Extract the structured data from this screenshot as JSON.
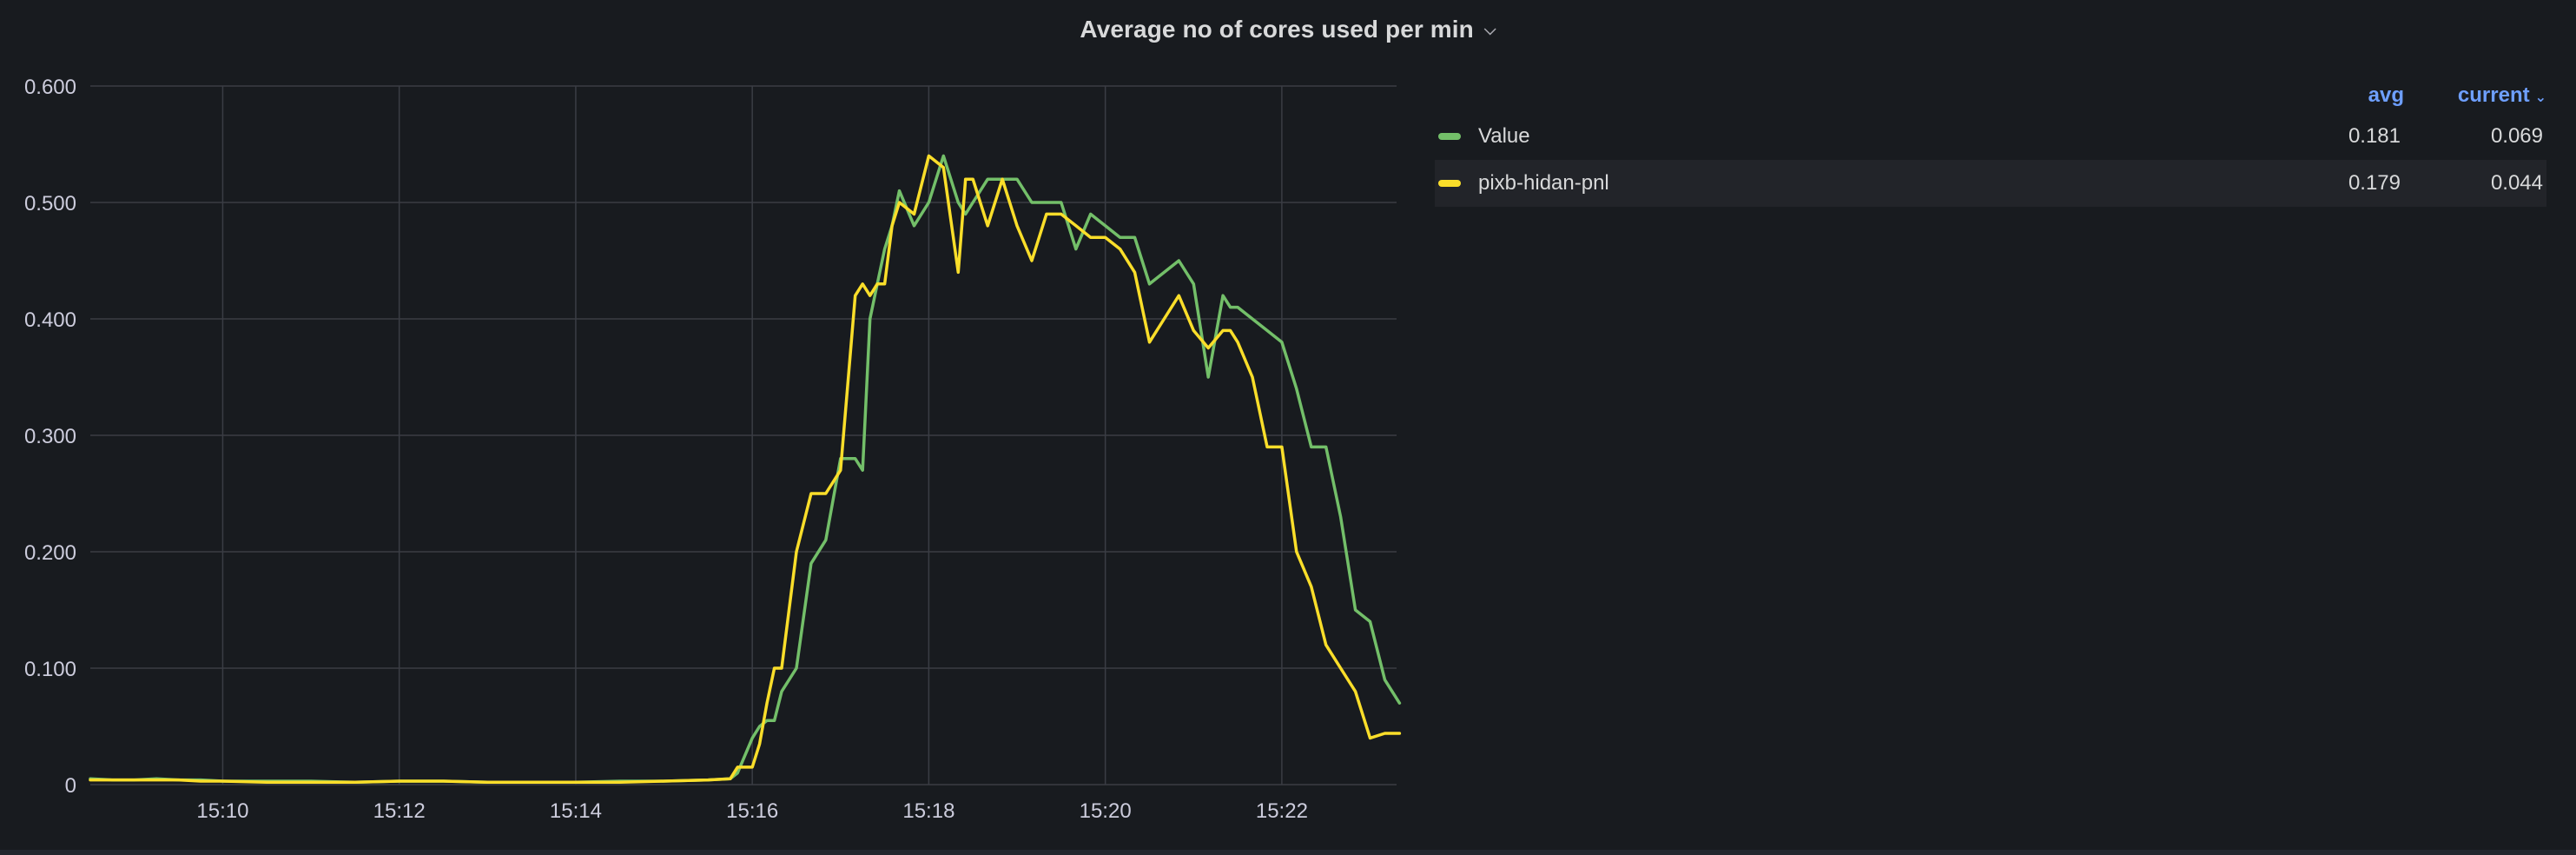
{
  "panel": {
    "title": "Average no of cores used per min"
  },
  "colors": {
    "value": "#73bf69",
    "pixb": "#fade2a",
    "grid": "#3a3d44",
    "text": "#ccccdc"
  },
  "legend": {
    "col_avg": "avg",
    "col_current": "current",
    "rows": [
      {
        "name": "Value",
        "avg": "0.181",
        "current": "0.069"
      },
      {
        "name": "pixb-hidan-pnl",
        "avg": "0.179",
        "current": "0.044"
      }
    ]
  },
  "chart_data": {
    "type": "line",
    "x_unit": "minutes",
    "x_range": [
      "15:08.5",
      "15:23.3"
    ],
    "x_ticks": [
      "15:10",
      "15:12",
      "15:14",
      "15:16",
      "15:18",
      "15:20",
      "15:22"
    ],
    "y_ticks": [
      "0",
      "0.100",
      "0.200",
      "0.300",
      "0.400",
      "0.500",
      "0.600"
    ],
    "ylim": [
      0,
      0.6
    ],
    "grid": true,
    "legend_position": "right",
    "series": [
      {
        "name": "Value",
        "color": "#73bf69",
        "x": [
          "15:08:30",
          "15:08:45",
          "15:09:00",
          "15:09:15",
          "15:09:30",
          "15:09:45",
          "15:10:00",
          "15:10:30",
          "15:11:00",
          "15:11:30",
          "15:12:00",
          "15:12:30",
          "15:13:00",
          "15:13:30",
          "15:14:00",
          "15:14:30",
          "15:15:00",
          "15:15:30",
          "15:15:45",
          "15:15:50",
          "15:16:00",
          "15:16:05",
          "15:16:10",
          "15:16:15",
          "15:16:20",
          "15:16:30",
          "15:16:40",
          "15:16:50",
          "15:17:00",
          "15:17:10",
          "15:17:15",
          "15:17:20",
          "15:17:25",
          "15:17:30",
          "15:17:35",
          "15:17:40",
          "15:17:50",
          "15:18:00",
          "15:18:10",
          "15:18:20",
          "15:18:25",
          "15:18:30",
          "15:18:40",
          "15:18:50",
          "15:19:00",
          "15:19:10",
          "15:19:20",
          "15:19:30",
          "15:19:40",
          "15:19:50",
          "15:20:00",
          "15:20:10",
          "15:20:20",
          "15:20:30",
          "15:20:40",
          "15:20:50",
          "15:21:00",
          "15:21:10",
          "15:21:20",
          "15:21:25",
          "15:21:30",
          "15:21:40",
          "15:21:50",
          "15:22:00",
          "15:22:10",
          "15:22:20",
          "15:22:30",
          "15:22:40",
          "15:22:50",
          "15:23:00",
          "15:23:10",
          "15:23:20"
        ],
        "y": [
          0.005,
          0.004,
          0.004,
          0.005,
          0.004,
          0.004,
          0.003,
          0.003,
          0.003,
          0.002,
          0.003,
          0.003,
          0.002,
          0.002,
          0.002,
          0.003,
          0.003,
          0.004,
          0.005,
          0.01,
          0.04,
          0.05,
          0.055,
          0.055,
          0.08,
          0.1,
          0.19,
          0.21,
          0.28,
          0.28,
          0.27,
          0.4,
          0.43,
          0.46,
          0.48,
          0.51,
          0.48,
          0.5,
          0.54,
          0.5,
          0.49,
          0.5,
          0.52,
          0.52,
          0.52,
          0.5,
          0.5,
          0.5,
          0.46,
          0.49,
          0.48,
          0.47,
          0.47,
          0.43,
          0.44,
          0.45,
          0.43,
          0.35,
          0.42,
          0.41,
          0.41,
          0.4,
          0.39,
          0.38,
          0.34,
          0.29,
          0.29,
          0.23,
          0.15,
          0.14,
          0.09,
          0.07
        ]
      },
      {
        "name": "pixb-hidan-pnl",
        "color": "#fade2a",
        "x": [
          "15:08:30",
          "15:08:45",
          "15:09:00",
          "15:09:15",
          "15:09:30",
          "15:09:45",
          "15:10:00",
          "15:10:30",
          "15:11:00",
          "15:11:30",
          "15:12:00",
          "15:12:30",
          "15:13:00",
          "15:13:30",
          "15:14:00",
          "15:14:30",
          "15:15:00",
          "15:15:30",
          "15:15:45",
          "15:15:50",
          "15:16:00",
          "15:16:05",
          "15:16:10",
          "15:16:15",
          "15:16:20",
          "15:16:30",
          "15:16:40",
          "15:16:50",
          "15:17:00",
          "15:17:10",
          "15:17:15",
          "15:17:20",
          "15:17:25",
          "15:17:30",
          "15:17:35",
          "15:17:40",
          "15:17:50",
          "15:18:00",
          "15:18:10",
          "15:18:20",
          "15:18:25",
          "15:18:30",
          "15:18:40",
          "15:18:50",
          "15:19:00",
          "15:19:10",
          "15:19:20",
          "15:19:30",
          "15:19:40",
          "15:19:50",
          "15:20:00",
          "15:20:10",
          "15:20:20",
          "15:20:30",
          "15:20:40",
          "15:20:50",
          "15:21:00",
          "15:21:10",
          "15:21:20",
          "15:21:25",
          "15:21:30",
          "15:21:40",
          "15:21:50",
          "15:22:00",
          "15:22:10",
          "15:22:20",
          "15:22:30",
          "15:22:40",
          "15:22:50",
          "15:23:00",
          "15:23:10",
          "15:23:20"
        ],
        "y": [
          0.004,
          0.004,
          0.004,
          0.004,
          0.004,
          0.003,
          0.003,
          0.002,
          0.002,
          0.002,
          0.003,
          0.003,
          0.002,
          0.002,
          0.002,
          0.002,
          0.003,
          0.004,
          0.005,
          0.015,
          0.015,
          0.035,
          0.07,
          0.1,
          0.1,
          0.2,
          0.25,
          0.25,
          0.27,
          0.42,
          0.43,
          0.42,
          0.43,
          0.43,
          0.48,
          0.5,
          0.49,
          0.54,
          0.53,
          0.44,
          0.52,
          0.52,
          0.48,
          0.52,
          0.48,
          0.45,
          0.49,
          0.49,
          0.48,
          0.47,
          0.47,
          0.46,
          0.44,
          0.38,
          0.4,
          0.42,
          0.39,
          0.375,
          0.39,
          0.39,
          0.38,
          0.35,
          0.29,
          0.29,
          0.2,
          0.17,
          0.12,
          0.1,
          0.08,
          0.04,
          0.044,
          0.044
        ]
      }
    ]
  }
}
